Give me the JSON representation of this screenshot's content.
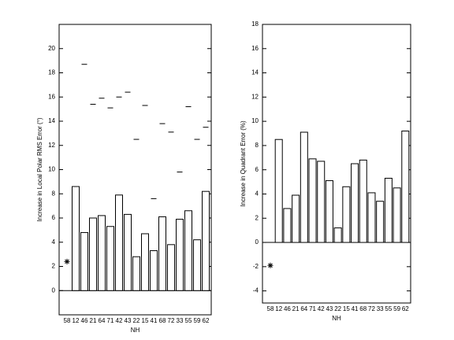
{
  "chart_data": [
    {
      "type": "bar",
      "ylabel": "Increase in Local Polar RMS Error (°)",
      "xlabel": "NH",
      "categories": [
        "58",
        "12",
        "46",
        "21",
        "64",
        "71",
        "42",
        "43",
        "22",
        "15",
        "41",
        "68",
        "72",
        "33",
        "55",
        "59",
        "62"
      ],
      "values": [
        null,
        8.6,
        4.8,
        6.0,
        6.2,
        5.3,
        7.9,
        6.3,
        2.8,
        4.7,
        3.3,
        6.1,
        3.8,
        5.9,
        6.6,
        4.2,
        8.2
      ],
      "dash_values": [
        null,
        null,
        18.7,
        15.4,
        15.9,
        15.1,
        16.0,
        16.4,
        12.5,
        15.3,
        7.6,
        13.8,
        13.1,
        9.8,
        15.2,
        12.5,
        13.5
      ],
      "star_values": [
        2.4,
        null,
        null,
        null,
        null,
        null,
        null,
        null,
        null,
        null,
        null,
        null,
        null,
        null,
        null,
        null,
        null
      ],
      "color": "#000000",
      "ylim": [
        -2,
        22
      ],
      "yticks": [
        0,
        2,
        4,
        6,
        8,
        10,
        12,
        14,
        16,
        18,
        20
      ]
    },
    {
      "type": "bar",
      "ylabel": "Increase in Quadrant Error (%)",
      "xlabel": "NH",
      "categories": [
        "58",
        "12",
        "46",
        "21",
        "64",
        "71",
        "42",
        "43",
        "22",
        "15",
        "41",
        "68",
        "72",
        "33",
        "55",
        "59",
        "62"
      ],
      "values": [
        null,
        8.5,
        2.8,
        3.9,
        9.1,
        6.9,
        6.7,
        5.1,
        1.2,
        4.6,
        6.5,
        6.8,
        4.1,
        3.4,
        5.3,
        4.5,
        9.2
      ],
      "star_values": [
        -1.9,
        null,
        null,
        null,
        null,
        null,
        null,
        null,
        null,
        null,
        null,
        null,
        null,
        null,
        null,
        null,
        null
      ],
      "color": "#000000",
      "ylim": [
        -5,
        18
      ],
      "yticks": [
        -4,
        -2,
        0,
        2,
        4,
        6,
        8,
        10,
        12,
        14,
        16,
        18
      ]
    }
  ]
}
